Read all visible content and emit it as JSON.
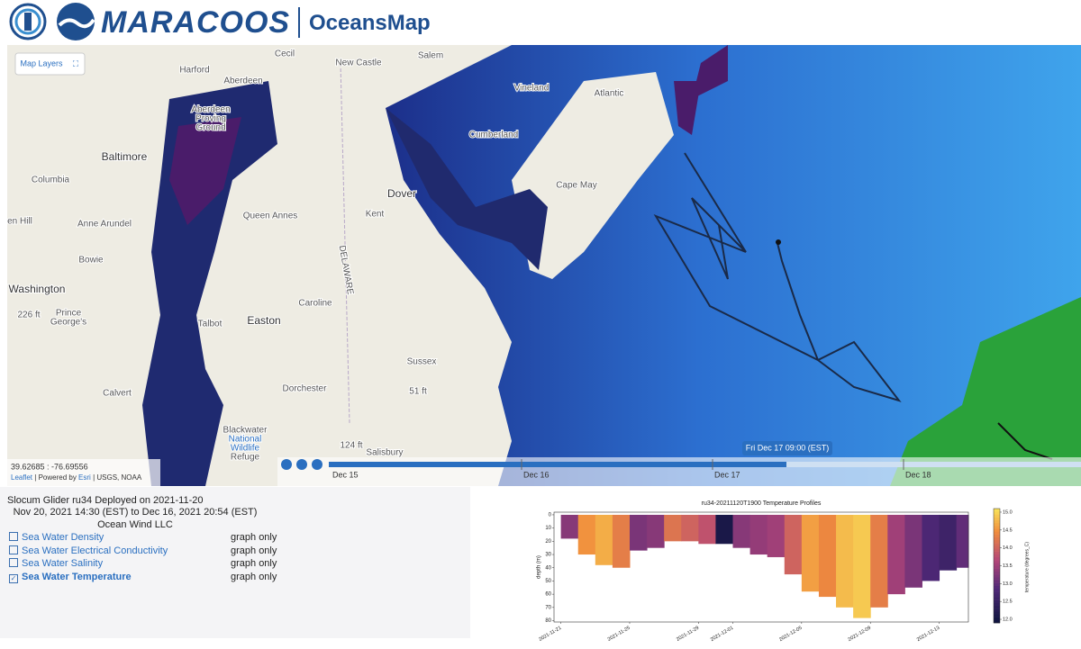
{
  "header": {
    "brand": "MARACOOS",
    "app_name": "OceansMap"
  },
  "map": {
    "layers_button": "Map Layers",
    "place_labels": [
      "Harford",
      "Cecil",
      "New Castle",
      "Salem",
      "Vineland",
      "Atlantic",
      "Aberdeen",
      "Aberdeen",
      "Proving",
      "Ground",
      "Baltimore",
      "Columbia",
      "en Hill",
      "Anne Arundel",
      "Bowie",
      "Washington",
      "226 ft",
      "Prince",
      "George's",
      "Calvert",
      "Queen Annes",
      "Kent",
      "Dover",
      "Cumberland",
      "Cape May",
      "Caroline",
      "Easton",
      "Talbot",
      "Dorchester",
      "Sussex",
      "51 ft",
      "DELAWARE",
      "Blackwater",
      "National",
      "Wildlife",
      "Refuge",
      "124 ft",
      "Salisbury"
    ],
    "coordinates": "39.62685 : -76.69556",
    "attribution": {
      "leaflet": "Leaflet",
      "powered_by": "| Powered by",
      "esri": "Esri",
      "sources": "| USGS, NOAA"
    }
  },
  "timeline": {
    "current_time": "Fri Dec 17 09:00 (EST)",
    "day_labels": [
      "Dec 15",
      "Dec 16",
      "Dec 17",
      "Dec 18"
    ]
  },
  "info": {
    "title": "Slocum Glider ru34 Deployed on 2021-11-20",
    "date_range": "Nov 20, 2021 14:30 (EST) to Dec 16, 2021 20:54 (EST)",
    "operator": "Ocean Wind LLC",
    "variables": [
      {
        "name": "Sea Water Density",
        "checked": false,
        "mode": "graph only"
      },
      {
        "name": "Sea Water Electrical Conductivity",
        "checked": false,
        "mode": "graph only"
      },
      {
        "name": "Sea Water Salinity",
        "checked": false,
        "mode": "graph only"
      },
      {
        "name": "Sea Water Temperature",
        "checked": true,
        "mode": "graph only"
      }
    ]
  },
  "chart_data": {
    "type": "profile",
    "title": "ru34-20211120T1900 Temperature Profiles",
    "y_label": "depth (m)",
    "colorbar_label": "temperature (degrees_C)",
    "x": [
      0,
      1,
      2,
      3,
      4,
      5,
      6,
      7,
      8,
      9,
      10,
      11,
      12,
      13,
      14,
      15,
      16,
      17,
      18,
      19,
      20,
      21,
      22,
      23
    ],
    "depth": [
      18,
      30,
      38,
      40,
      27,
      25,
      20,
      20,
      22,
      22,
      25,
      30,
      32,
      45,
      58,
      62,
      70,
      78,
      70,
      60,
      55,
      50,
      42,
      40
    ],
    "temperature": [
      13.3,
      14.5,
      14.7,
      14.3,
      13.2,
      13.3,
      14.2,
      14.0,
      13.8,
      12.1,
      13.3,
      13.4,
      13.5,
      14.0,
      14.6,
      14.4,
      14.8,
      14.9,
      14.3,
      13.5,
      13.2,
      12.8,
      12.6,
      13.0
    ],
    "xlim": [
      -0.4,
      23.7
    ],
    "xticks": [
      {
        "value": 0,
        "label": "2021-11-21"
      },
      {
        "value": 4,
        "label": "2021-11-25"
      },
      {
        "value": 8,
        "label": "2021-11-29"
      },
      {
        "value": 10,
        "label": "2021-12-01"
      },
      {
        "value": 14,
        "label": "2021-12-05"
      },
      {
        "value": 18,
        "label": "2021-12-09"
      },
      {
        "value": 22,
        "label": "2021-12-13"
      }
    ],
    "ylim": [
      -2,
      81
    ],
    "yticks": [
      0,
      10,
      20,
      30,
      40,
      50,
      60,
      70,
      80
    ],
    "clim": [
      11.9,
      15.1
    ],
    "cticks": [
      {
        "value": 12,
        "label": "12.0"
      },
      12.5,
      {
        "value": 13,
        "label": "13.0"
      },
      13.5,
      {
        "value": 14,
        "label": "14.0"
      },
      14.5,
      {
        "value": 15,
        "label": "15.0"
      }
    ]
  }
}
